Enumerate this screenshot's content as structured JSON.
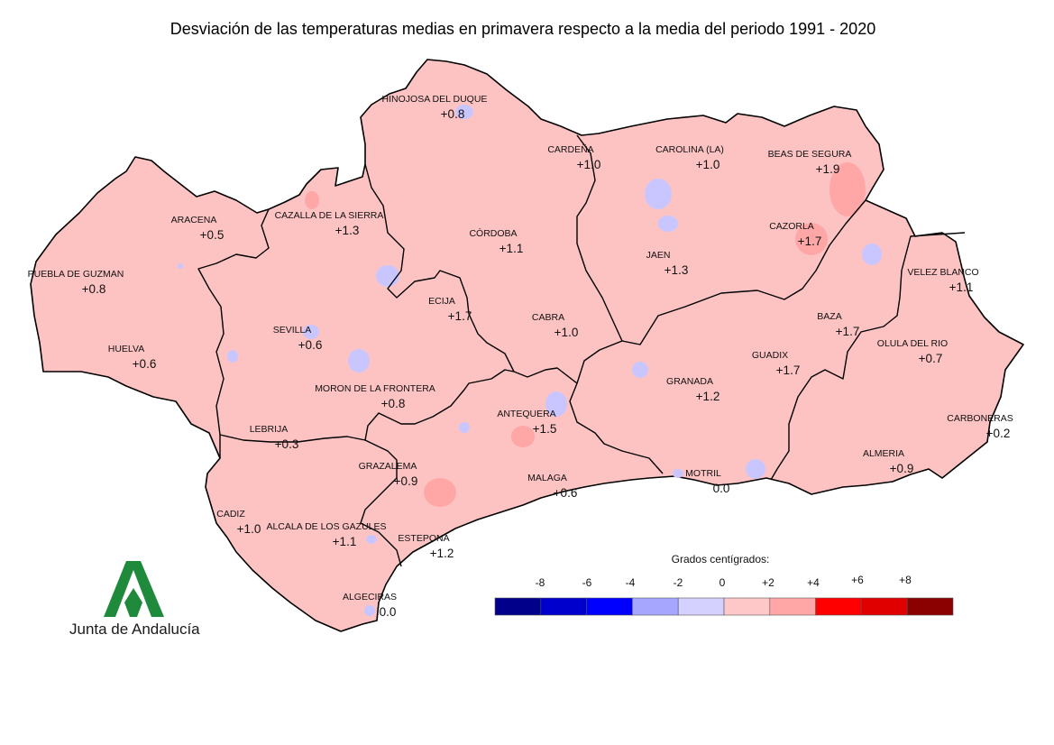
{
  "title": "Desviación de las temperaturas medias en primavera respecto a la media del periodo 1991 - 2020",
  "logo": {
    "text": "Junta de Andalucía",
    "color": "#1f8a3c"
  },
  "base_color": "#fdc3c3",
  "stations": [
    {
      "name": "HINOJOSA DEL DUQUE",
      "value": "+0.8"
    },
    {
      "name": "CARDEÑA",
      "value": "+1.0"
    },
    {
      "name": "CAROLINA (LA)",
      "value": "+1.0"
    },
    {
      "name": "BEAS DE SEGURA",
      "value": "+1.9"
    },
    {
      "name": "ARACENA",
      "value": "+0.5"
    },
    {
      "name": "CAZALLA DE LA SIERRA",
      "value": "+1.3"
    },
    {
      "name": "CÓRDOBA",
      "value": "+1.1"
    },
    {
      "name": "CAZORLA",
      "value": "+1.7"
    },
    {
      "name": "JAEN",
      "value": "+1.3"
    },
    {
      "name": "PUEBLA DE GUZMAN",
      "value": "+0.8"
    },
    {
      "name": "VELEZ BLANCO",
      "value": "+1.1"
    },
    {
      "name": "ECIJA",
      "value": "+1.7"
    },
    {
      "name": "SEVILLA",
      "value": "+0.6"
    },
    {
      "name": "CABRA",
      "value": "+1.0"
    },
    {
      "name": "BAZA",
      "value": "+1.7"
    },
    {
      "name": "HUELVA",
      "value": "+0.6"
    },
    {
      "name": "OLULA DEL RIO",
      "value": "+0.7"
    },
    {
      "name": "GUADIX",
      "value": "+1.7"
    },
    {
      "name": "GRANADA",
      "value": "+1.2"
    },
    {
      "name": "MORON DE LA FRONTERA",
      "value": "+0.8"
    },
    {
      "name": "ANTEQUERA",
      "value": "+1.5"
    },
    {
      "name": "LEBRIJA",
      "value": "+0.3"
    },
    {
      "name": "CARBONERAS",
      "value": "+0.2"
    },
    {
      "name": "GRAZALEMA",
      "value": "+0.9"
    },
    {
      "name": "MOTRIL",
      "value": "0.0"
    },
    {
      "name": "MALAGA",
      "value": "+0.6"
    },
    {
      "name": "ALMERIA",
      "value": "+0.9"
    },
    {
      "name": "CADIZ",
      "value": "+1.0"
    },
    {
      "name": "ALCALA DE LOS GAZULES",
      "value": "+1.1"
    },
    {
      "name": "ESTEPONA",
      "value": "+1.2"
    },
    {
      "name": "ALGECIRAS",
      "value": "0.0"
    }
  ],
  "legend": {
    "title": "Grados centígrados:",
    "ticks": [
      "-8",
      "-6",
      "-4",
      "-2",
      "0",
      "+2",
      "+4",
      "+6",
      "+8"
    ],
    "colors": [
      "#00008b",
      "#0000cd",
      "#0000ff",
      "#a6a6ff",
      "#d4d0ff",
      "#ffc8c8",
      "#ffa6a6",
      "#ff0000",
      "#e00000",
      "#8b0000"
    ]
  }
}
